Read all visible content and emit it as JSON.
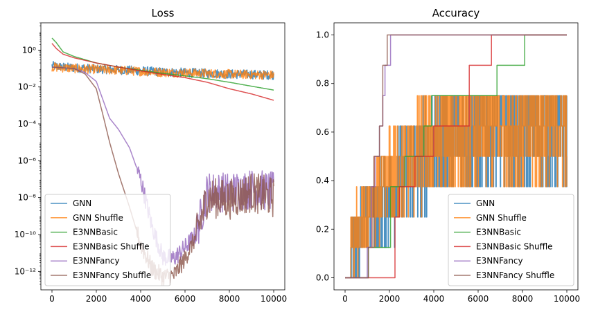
{
  "chart_data": [
    {
      "type": "line",
      "title": "Loss",
      "xlabel": "",
      "ylabel": "",
      "yscale": "log",
      "xlim": [
        -500,
        10500
      ],
      "ylim": [
        1e-13,
        30
      ],
      "xticks": [
        0,
        2000,
        4000,
        6000,
        8000,
        10000
      ],
      "xtick_labels": [
        "0",
        "2000",
        "4000",
        "6000",
        "8000",
        "10000"
      ],
      "yticks": [
        1e-12,
        1e-10,
        1e-08,
        1e-06,
        0.0001,
        0.01,
        1
      ],
      "ytick_labels": [
        "10⁻¹²",
        "10⁻¹⁰",
        "10⁻⁸",
        "10⁻⁶",
        "10⁻⁴",
        "10⁻²",
        "10⁰"
      ],
      "grid": false,
      "legend_position": "lower-left",
      "series": [
        {
          "name": "GNN",
          "color": "#1f77b4",
          "x": [
            0,
            500,
            1000,
            2000,
            3000,
            4000,
            5000,
            6000,
            7000,
            8000,
            9000,
            10000
          ],
          "y": [
            0.14,
            0.12,
            0.11,
            0.095,
            0.085,
            0.075,
            0.065,
            0.06,
            0.055,
            0.05,
            0.048,
            0.045
          ]
        },
        {
          "name": "GNN Shuffle",
          "color": "#ff7f0e",
          "x": [
            0,
            500,
            1000,
            2000,
            3000,
            4000,
            5000,
            6000,
            7000,
            8000,
            9000,
            10000
          ],
          "y": [
            0.12,
            0.11,
            0.1,
            0.09,
            0.08,
            0.07,
            0.062,
            0.058,
            0.054,
            0.05,
            0.047,
            0.044
          ]
        },
        {
          "name": "E3NNBasic",
          "color": "#2ca02c",
          "x": [
            0,
            200,
            500,
            1000,
            2000,
            3000,
            4000,
            5000,
            6000,
            7000,
            8000,
            9000,
            10000
          ],
          "y": [
            4.5,
            2.5,
            0.8,
            0.45,
            0.2,
            0.12,
            0.08,
            0.055,
            0.04,
            0.028,
            0.018,
            0.011,
            0.0068
          ]
        },
        {
          "name": "E3NNBasic Shuffle",
          "color": "#d62728",
          "x": [
            0,
            200,
            500,
            1000,
            2000,
            3000,
            4000,
            5000,
            6000,
            7000,
            8000,
            9000,
            10000
          ],
          "y": [
            2.3,
            1.2,
            0.6,
            0.38,
            0.2,
            0.12,
            0.075,
            0.048,
            0.032,
            0.018,
            0.008,
            0.0042,
            0.0019
          ]
        },
        {
          "name": "E3NNFancy",
          "color": "#9467bd",
          "x": [
            0,
            1000,
            1500,
            2000,
            2300,
            2600,
            3000,
            3500,
            4000,
            4500,
            5000,
            5500,
            6000,
            6500,
            7000,
            8000,
            9000,
            10000
          ],
          "y": [
            0.12,
            0.1,
            0.06,
            0.02,
            0.002,
            0.0002,
            5e-05,
            5e-06,
            1e-07,
            3e-10,
            6e-12,
            5e-12,
            2e-11,
            1e-10,
            2e-08,
            2e-08,
            3e-08,
            2e-08
          ]
        },
        {
          "name": "E3NNFancy Shuffle",
          "color": "#8c564b",
          "x": [
            0,
            1000,
            1500,
            2000,
            2300,
            2600,
            3000,
            3500,
            4000,
            4500,
            5000,
            5500,
            6000,
            6500,
            7000,
            8000,
            9000,
            10000
          ],
          "y": [
            0.12,
            0.1,
            0.05,
            0.008,
            0.0003,
            1e-05,
            2e-07,
            3e-09,
            3e-11,
            1.5e-12,
            5e-13,
            6e-13,
            5e-12,
            8e-11,
            1e-08,
            8e-09,
            2e-08,
            1e-08
          ]
        }
      ]
    },
    {
      "type": "line",
      "title": "Accuracy",
      "xlabel": "",
      "ylabel": "",
      "xlim": [
        -500,
        10500
      ],
      "ylim": [
        -0.05,
        1.05
      ],
      "xticks": [
        0,
        2000,
        4000,
        6000,
        8000,
        10000
      ],
      "xtick_labels": [
        "0",
        "2000",
        "4000",
        "6000",
        "8000",
        "10000"
      ],
      "yticks": [
        0.0,
        0.2,
        0.4,
        0.6,
        0.8,
        1.0
      ],
      "ytick_labels": [
        "0.0",
        "0.2",
        "0.4",
        "0.6",
        "0.8",
        "1.0"
      ],
      "grid": false,
      "legend_position": "lower-right",
      "series": [
        {
          "name": "GNN",
          "color": "#1f77b4",
          "x": [
            0,
            1000,
            2000,
            3000,
            4000,
            5000,
            6000,
            7000,
            8000,
            9000,
            10000
          ],
          "y": [
            0.1,
            0.25,
            0.35,
            0.45,
            0.55,
            0.6,
            0.6,
            0.62,
            0.62,
            0.62,
            0.62
          ]
        },
        {
          "name": "GNN Shuffle",
          "color": "#ff7f0e",
          "x": [
            0,
            1000,
            2000,
            3000,
            4000,
            5000,
            6000,
            7000,
            8000,
            9000,
            10000
          ],
          "y": [
            0.1,
            0.25,
            0.4,
            0.5,
            0.55,
            0.6,
            0.62,
            0.62,
            0.62,
            0.62,
            0.62
          ]
        },
        {
          "name": "E3NNBasic",
          "color": "#2ca02c",
          "x": [
            0,
            1050,
            1050,
            2050,
            2050,
            2700,
            2700,
            3550,
            3550,
            3900,
            3900,
            6850,
            6850,
            8100,
            8100,
            10000
          ],
          "y": [
            0,
            0,
            0.125,
            0.125,
            0.375,
            0.375,
            0.5,
            0.5,
            0.625,
            0.625,
            0.75,
            0.75,
            0.875,
            0.875,
            1.0,
            1.0
          ]
        },
        {
          "name": "E3NNBasic Shuffle",
          "color": "#d62728",
          "x": [
            0,
            2250,
            2250,
            2450,
            2450,
            2750,
            2750,
            3150,
            3150,
            3600,
            3600,
            4000,
            4000,
            5600,
            5600,
            6600,
            6600,
            10000
          ],
          "y": [
            0,
            0,
            0.25,
            0.25,
            0.375,
            0.375,
            0.375,
            0.375,
            0.5,
            0.5,
            0.5,
            0.5,
            0.625,
            0.625,
            0.875,
            0.875,
            1.0,
            1.0
          ]
        },
        {
          "name": "E3NNFancy",
          "color": "#9467bd",
          "x": [
            0,
            1000,
            1000,
            1200,
            1200,
            1350,
            1350,
            1550,
            1550,
            1700,
            1700,
            1800,
            1800,
            2050,
            2050,
            10000
          ],
          "y": [
            0,
            0,
            0.125,
            0.125,
            0.375,
            0.375,
            0.5,
            0.5,
            0.625,
            0.625,
            0.75,
            0.75,
            0.875,
            0.875,
            1.0,
            1.0
          ]
        },
        {
          "name": "E3NNFancy Shuffle",
          "color": "#8c564b",
          "x": [
            0,
            1050,
            1050,
            1300,
            1300,
            1550,
            1550,
            1700,
            1700,
            1900,
            1900,
            2200,
            2200,
            10000
          ],
          "y": [
            0,
            0,
            0.125,
            0.125,
            0.5,
            0.5,
            0.625,
            0.625,
            0.875,
            0.875,
            1.0,
            1.0,
            1.0,
            1.0
          ]
        }
      ]
    }
  ]
}
